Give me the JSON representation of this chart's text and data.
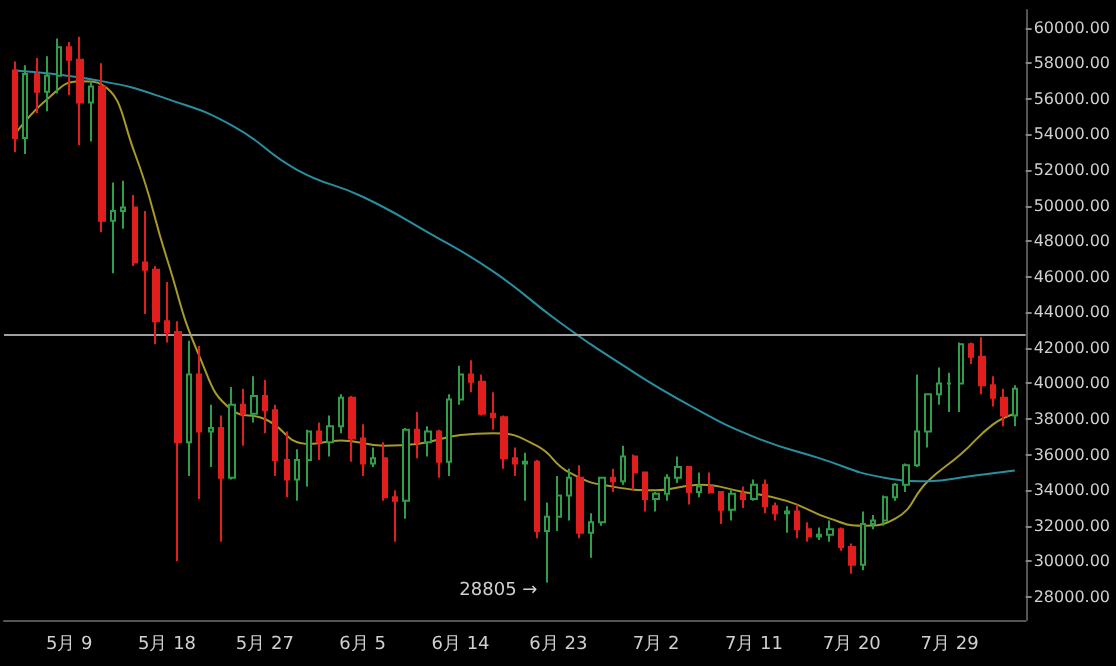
{
  "chart_data": {
    "type": "candlestick",
    "x": [
      "--05-04",
      "--05-05",
      "--05-06",
      "--05-07",
      "--05-08",
      "--05-09",
      "--05-10",
      "--05-11",
      "--05-12",
      "--05-13",
      "--05-14",
      "--05-15",
      "--05-16",
      "--05-17",
      "--05-18",
      "--05-19",
      "--05-20",
      "--05-21",
      "--05-22",
      "--05-23",
      "--05-24",
      "--05-25",
      "--05-26",
      "--05-27",
      "--05-28",
      "--05-29",
      "--05-30",
      "--05-31",
      "--06-01",
      "--06-02",
      "--06-03",
      "--06-04",
      "--06-05",
      "--06-06",
      "--06-07",
      "--06-08",
      "--06-09",
      "--06-10",
      "--06-11",
      "--06-12",
      "--06-13",
      "--06-14",
      "--06-15",
      "--06-16",
      "--06-17",
      "--06-18",
      "--06-19",
      "--06-20",
      "--06-21",
      "--06-22",
      "--06-23",
      "--06-24",
      "--06-25",
      "--06-26",
      "--06-27",
      "--06-28",
      "--06-29",
      "--06-30",
      "--07-01",
      "--07-02",
      "--07-03",
      "--07-04",
      "--07-05",
      "--07-06",
      "--07-07",
      "--07-08",
      "--07-09",
      "--07-10",
      "--07-11",
      "--07-12",
      "--07-13",
      "--07-14",
      "--07-15",
      "--07-16",
      "--07-17",
      "--07-18",
      "--07-19",
      "--07-20",
      "--07-21",
      "--07-22",
      "--07-23",
      "--07-24",
      "--07-25",
      "--07-26",
      "--07-27",
      "--07-28",
      "--07-29",
      "--07-30",
      "--07-31",
      "--08-01",
      "--08-02",
      "--08-03",
      "--08-04"
    ],
    "ohlc": [
      [
        57600,
        58100,
        53000,
        53800
      ],
      [
        53800,
        57900,
        52900,
        57400
      ],
      [
        57400,
        58300,
        55200,
        56400
      ],
      [
        56400,
        58400,
        55300,
        57300
      ],
      [
        57300,
        59400,
        56300,
        58900
      ],
      [
        58900,
        59200,
        56200,
        58200
      ],
      [
        58200,
        59500,
        53400,
        55800
      ],
      [
        55800,
        57000,
        53600,
        56700
      ],
      [
        56700,
        58000,
        48500,
        49150
      ],
      [
        49150,
        51300,
        46200,
        49700
      ],
      [
        49700,
        51400,
        48700,
        49900
      ],
      [
        49900,
        50600,
        46600,
        46800
      ],
      [
        46800,
        49700,
        43900,
        46400
      ],
      [
        46400,
        46600,
        42200,
        43500
      ],
      [
        43500,
        45700,
        42300,
        42900
      ],
      [
        42900,
        43500,
        30000,
        36700
      ],
      [
        36700,
        42400,
        34800,
        40500
      ],
      [
        40500,
        42100,
        33500,
        37300
      ],
      [
        37300,
        38800,
        35300,
        37500
      ],
      [
        37500,
        38200,
        31100,
        34700
      ],
      [
        34700,
        39800,
        34600,
        38800
      ],
      [
        38800,
        39700,
        36500,
        38300
      ],
      [
        38300,
        40400,
        37800,
        39300
      ],
      [
        39300,
        40200,
        37200,
        38500
      ],
      [
        38500,
        38800,
        34800,
        35700
      ],
      [
        35700,
        37300,
        33600,
        34600
      ],
      [
        34600,
        36300,
        33400,
        35700
      ],
      [
        35700,
        37400,
        34200,
        37300
      ],
      [
        37300,
        37800,
        35700,
        36700
      ],
      [
        36700,
        38200,
        35900,
        37600
      ],
      [
        37600,
        39400,
        37200,
        39200
      ],
      [
        39200,
        39300,
        35600,
        36900
      ],
      [
        36900,
        37700,
        34800,
        35500
      ],
      [
        35500,
        36400,
        35300,
        35800
      ],
      [
        35800,
        36700,
        33400,
        33600
      ],
      [
        33600,
        34000,
        31100,
        33400
      ],
      [
        33400,
        37500,
        32400,
        37400
      ],
      [
        37400,
        38400,
        35800,
        36700
      ],
      [
        36700,
        37600,
        35900,
        37300
      ],
      [
        37300,
        37400,
        34700,
        35600
      ],
      [
        35600,
        39400,
        34800,
        39100
      ],
      [
        39100,
        41000,
        38800,
        40500
      ],
      [
        40500,
        41300,
        39500,
        40100
      ],
      [
        40100,
        40500,
        38200,
        38300
      ],
      [
        38300,
        39500,
        37400,
        38100
      ],
      [
        38100,
        38200,
        35200,
        35800
      ],
      [
        35800,
        36400,
        34800,
        35500
      ],
      [
        35500,
        36100,
        33400,
        35600
      ],
      [
        35600,
        35700,
        31300,
        31700
      ],
      [
        31700,
        33300,
        28805,
        32500
      ],
      [
        32500,
        34800,
        31700,
        33700
      ],
      [
        33700,
        35200,
        32300,
        34700
      ],
      [
        34700,
        35400,
        31300,
        31600
      ],
      [
        31600,
        32700,
        30200,
        32200
      ],
      [
        32200,
        34700,
        32000,
        34700
      ],
      [
        34700,
        35200,
        33900,
        34500
      ],
      [
        34500,
        36500,
        34300,
        35900
      ],
      [
        35900,
        36000,
        34000,
        35000
      ],
      [
        35000,
        35000,
        32800,
        33500
      ],
      [
        33500,
        33900,
        32800,
        33800
      ],
      [
        33800,
        34900,
        33400,
        34700
      ],
      [
        34700,
        35900,
        34400,
        35300
      ],
      [
        35300,
        35300,
        33200,
        33900
      ],
      [
        33900,
        35000,
        33600,
        34200
      ],
      [
        34200,
        35000,
        33800,
        33900
      ],
      [
        33900,
        33900,
        32100,
        32900
      ],
      [
        32900,
        34100,
        32300,
        33800
      ],
      [
        33800,
        34200,
        33000,
        33500
      ],
      [
        33500,
        34600,
        33400,
        34300
      ],
      [
        34300,
        34600,
        32700,
        33100
      ],
      [
        33100,
        33300,
        32300,
        32700
      ],
      [
        32700,
        33100,
        31600,
        32800
      ],
      [
        32800,
        33200,
        31300,
        31800
      ],
      [
        31800,
        32200,
        31100,
        31400
      ],
      [
        31400,
        31900,
        31200,
        31500
      ],
      [
        31500,
        32300,
        31100,
        31800
      ],
      [
        31800,
        31900,
        30600,
        30800
      ],
      [
        30800,
        31000,
        29300,
        29800
      ],
      [
        29800,
        32800,
        29500,
        32100
      ],
      [
        32100,
        32600,
        31800,
        32300
      ],
      [
        32300,
        33700,
        32000,
        33600
      ],
      [
        33600,
        34400,
        33400,
        34300
      ],
      [
        34300,
        35500,
        33900,
        35400
      ],
      [
        35400,
        40500,
        35300,
        37300
      ],
      [
        37300,
        39400,
        36400,
        39400
      ],
      [
        39400,
        40900,
        38800,
        40000
      ],
      [
        40000,
        40600,
        38400,
        40000
      ],
      [
        40000,
        42300,
        38400,
        42200
      ],
      [
        42200,
        42300,
        41100,
        41500
      ],
      [
        41500,
        42600,
        39400,
        39900
      ],
      [
        39900,
        40400,
        38700,
        39200
      ],
      [
        39200,
        39700,
        37600,
        38200
      ],
      [
        38200,
        39900,
        37600,
        39700
      ]
    ],
    "series": [
      {
        "type": "line",
        "color": "#a89a2a",
        "x": [
          "--05-04",
          "--05-07",
          "--05-10",
          "--05-12",
          "--05-15",
          "--05-18",
          "--05-21",
          "--05-24",
          "--05-27",
          "--05-31",
          "--06-03",
          "--06-07",
          "--06-10",
          "--06-14",
          "--06-17",
          "--06-21",
          "--06-24",
          "--06-28",
          "--07-02",
          "--07-06",
          "--07-10",
          "--07-14",
          "--07-18",
          "--07-21",
          "--07-24",
          "--07-27",
          "--07-30",
          "--08-02",
          "--08-04"
        ],
        "values": [
          54000,
          56000,
          57000,
          56800,
          53000,
          47000,
          41500,
          38500,
          38000,
          36600,
          36800,
          36500,
          36600,
          37100,
          37200,
          36500,
          35000,
          34200,
          34000,
          34300,
          33900,
          33400,
          32400,
          32000,
          32400,
          34500,
          36000,
          37700,
          38300
        ]
      },
      {
        "type": "line",
        "color": "#2a8ea0",
        "x": [
          "--05-04",
          "--05-12",
          "--05-18",
          "--05-24",
          "--05-30",
          "--06-05",
          "--06-11",
          "--06-17",
          "--06-23",
          "--06-29",
          "--07-05",
          "--07-11",
          "--07-17",
          "--07-23",
          "--07-27",
          "--07-31",
          "--08-04"
        ],
        "values": [
          57600,
          57000,
          56000,
          54500,
          52000,
          50500,
          48500,
          46300,
          43500,
          41000,
          38800,
          37000,
          35800,
          34700,
          34500,
          34800,
          35100
        ]
      }
    ],
    "xlim": [
      "--05-03",
      "--08-05"
    ],
    "xticks": [
      {
        "value": "--05-09",
        "label": "5月 9"
      },
      {
        "value": "--05-18",
        "label": "5月 18"
      },
      {
        "value": "--05-27",
        "label": "5月 27"
      },
      {
        "value": "--06-05",
        "label": "6月 5"
      },
      {
        "value": "--06-14",
        "label": "6月 14"
      },
      {
        "value": "--06-23",
        "label": "6月 23"
      },
      {
        "value": "--07-02",
        "label": "7月 2"
      },
      {
        "value": "--07-11",
        "label": "7月 11"
      },
      {
        "value": "--07-20",
        "label": "7月 20"
      },
      {
        "value": "--07-29",
        "label": "7月 29"
      }
    ],
    "ylim": [
      26700,
      61000
    ],
    "yticks": [
      {
        "value": 28000,
        "label": "28000.00"
      },
      {
        "value": 30000,
        "label": "30000.00"
      },
      {
        "value": 32000,
        "label": "32000.00"
      },
      {
        "value": 34000,
        "label": "34000.00"
      },
      {
        "value": 36000,
        "label": "36000.00"
      },
      {
        "value": 38000,
        "label": "38000.00"
      },
      {
        "value": 40000,
        "label": "40000.00"
      },
      {
        "value": 42000,
        "label": "42000.00"
      },
      {
        "value": 44000,
        "label": "44000.00"
      },
      {
        "value": 46000,
        "label": "46000.00"
      },
      {
        "value": 48000,
        "label": "48000.00"
      },
      {
        "value": 50000,
        "label": "50000.00"
      },
      {
        "value": 52000,
        "label": "52000.00"
      },
      {
        "value": 54000,
        "label": "54000.00"
      },
      {
        "value": 56000,
        "label": "56000.00"
      },
      {
        "value": 58000,
        "label": "58000.00"
      },
      {
        "value": 60000,
        "label": "60000.00"
      }
    ],
    "ref_lines": [
      {
        "axis": "y",
        "value": 42800,
        "color": "#a0a0a0"
      }
    ],
    "annotations": [
      {
        "text": "28805 →",
        "x": "--06-22",
        "y": 28805
      }
    ]
  }
}
